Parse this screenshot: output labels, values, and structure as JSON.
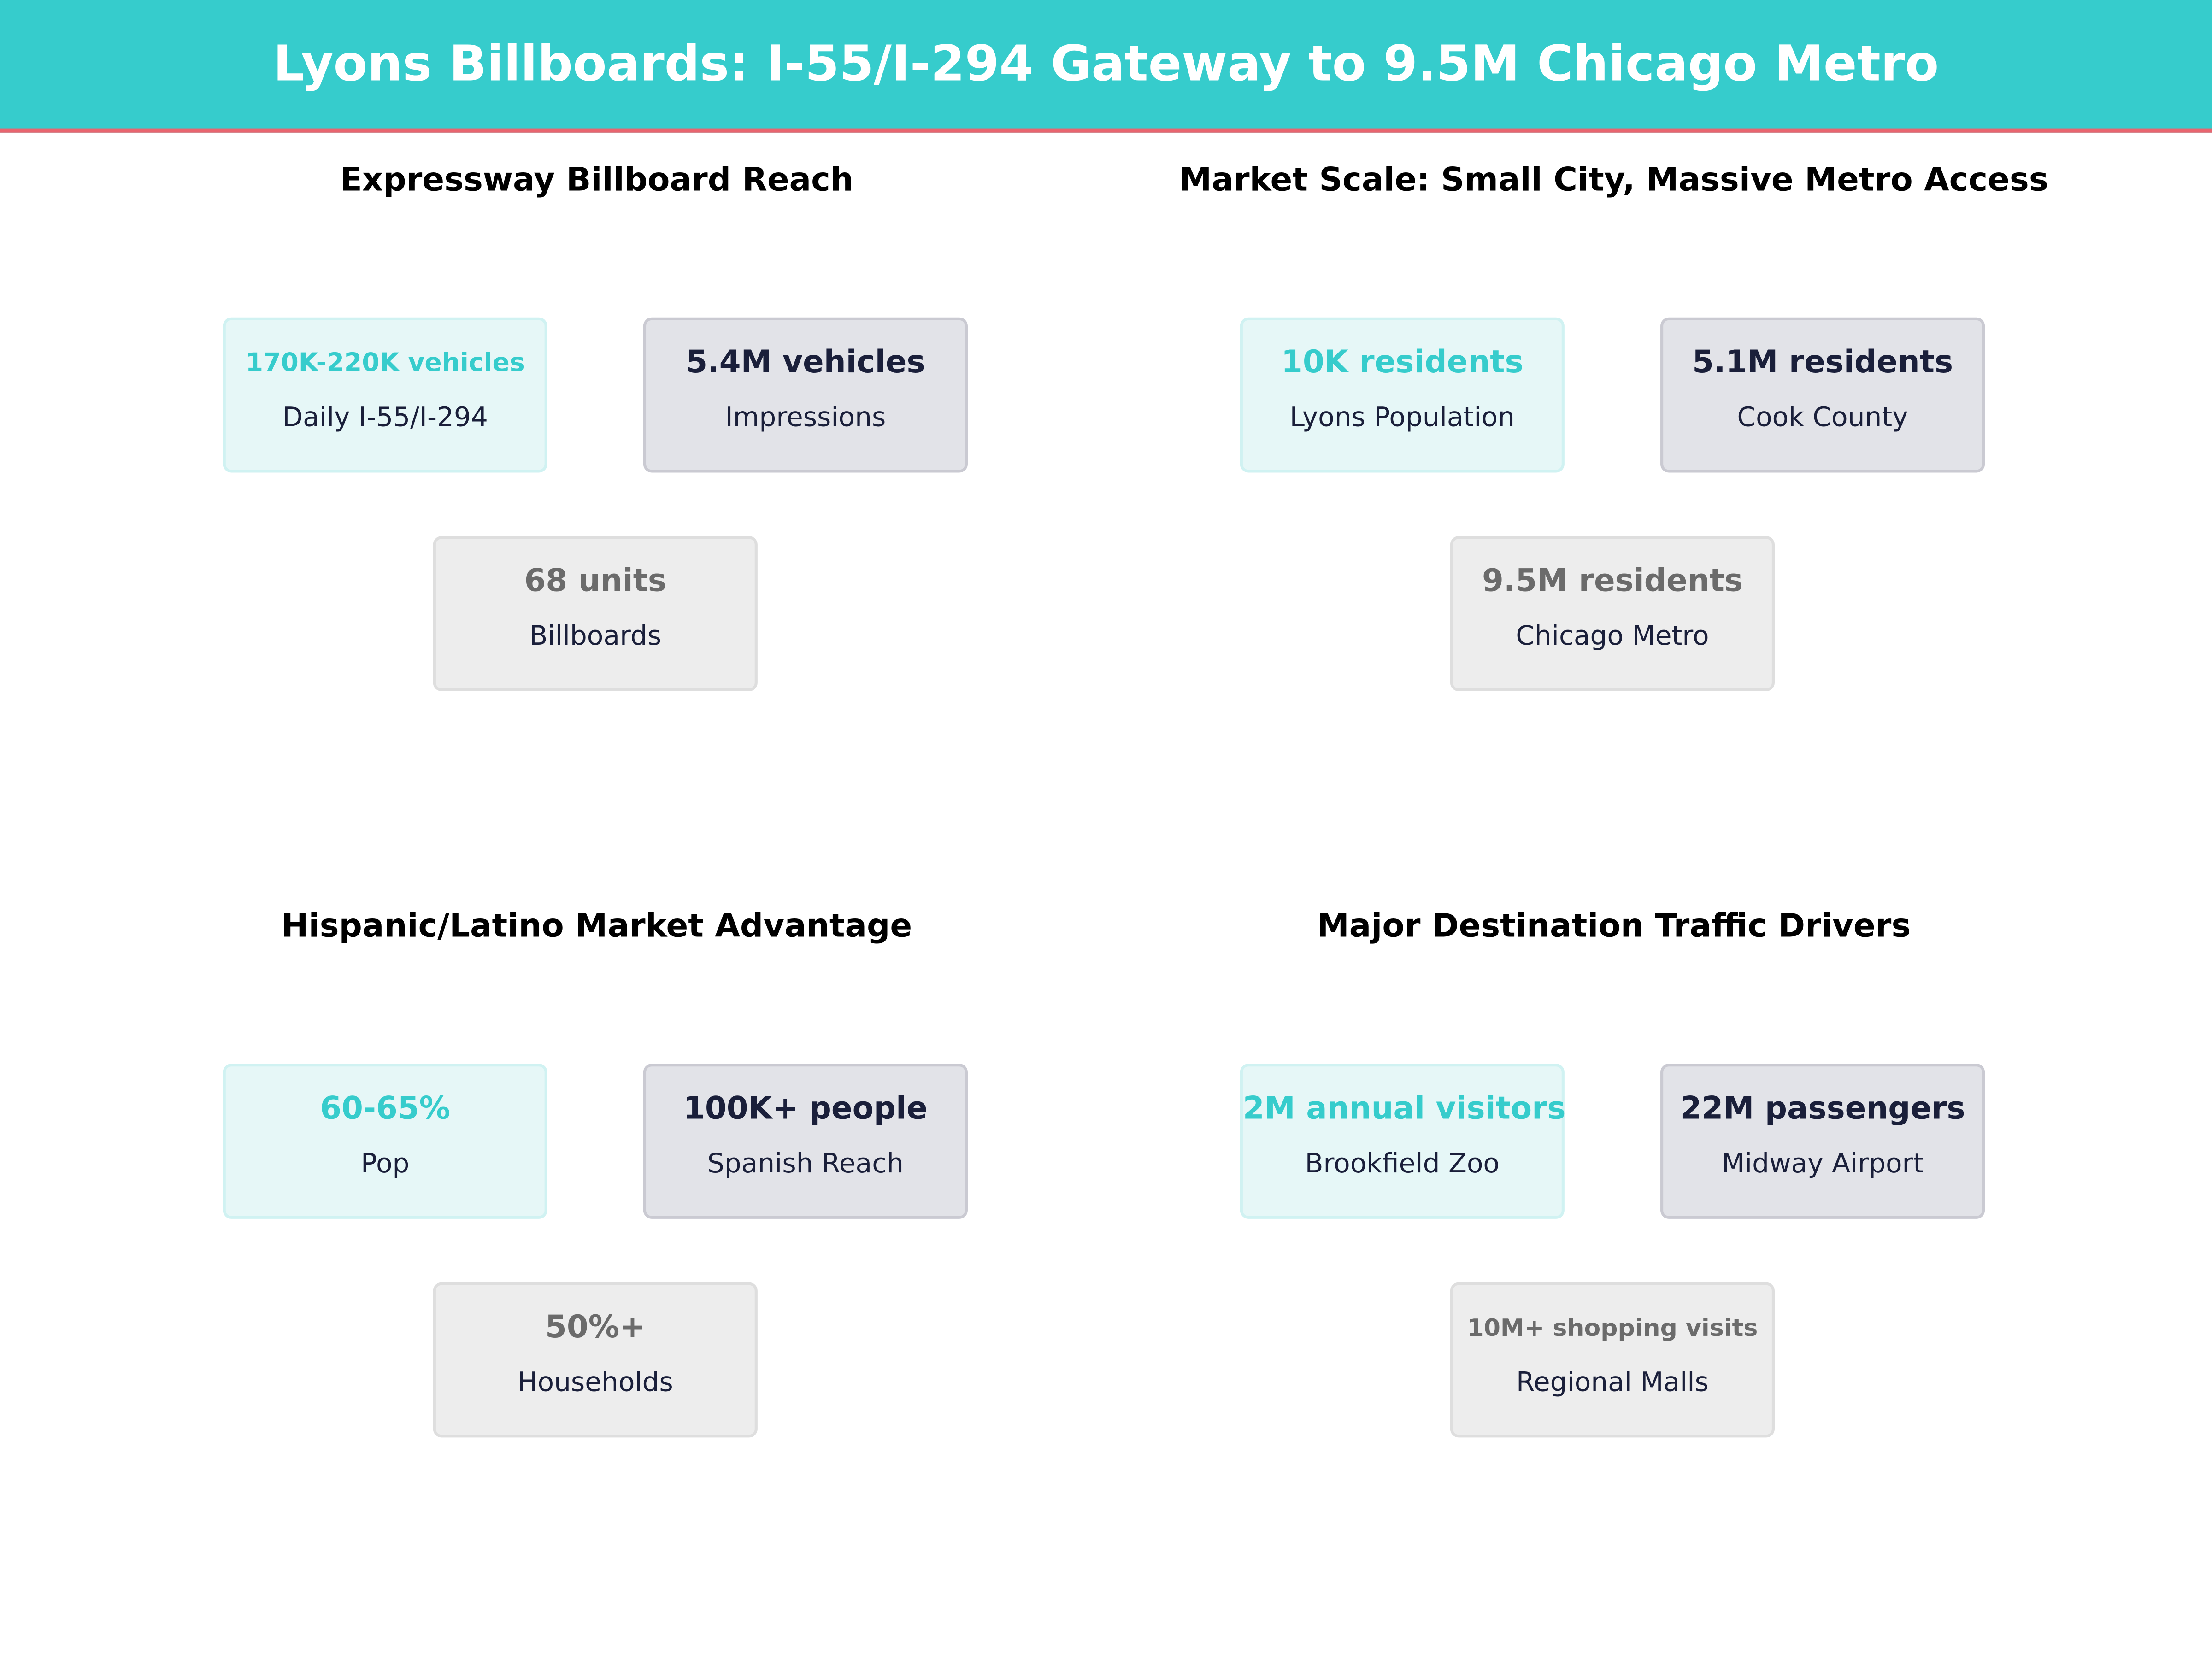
{
  "title": "Lyons Billboards: I-55/I-294 Gateway to 9.5M Chicago Metro",
  "colors": {
    "header": "#36CCCC",
    "accent_line": "#E8656F",
    "primary": "#36CCCC",
    "dark": "#1A1F3A",
    "muted": "#6B6B6B"
  },
  "panels": [
    {
      "title": "Expressway Billboard Reach",
      "cards": [
        {
          "value": "170K-220K vehicles",
          "label": "Daily I-55/I-294"
        },
        {
          "value": "5.4M vehicles",
          "label": "Impressions"
        },
        {
          "value": "68 units",
          "label": "Billboards"
        }
      ]
    },
    {
      "title": "Market Scale: Small City, Massive Metro Access",
      "cards": [
        {
          "value": "10K residents",
          "label": "Lyons Population"
        },
        {
          "value": "5.1M residents",
          "label": "Cook County"
        },
        {
          "value": "9.5M residents",
          "label": "Chicago Metro"
        }
      ]
    },
    {
      "title": "Hispanic/Latino Market Advantage",
      "cards": [
        {
          "value": "60-65%",
          "label": "Pop"
        },
        {
          "value": "100K+ people",
          "label": "Spanish Reach"
        },
        {
          "value": "50%+",
          "label": "Households"
        }
      ]
    },
    {
      "title": "Major Destination Traffic Drivers",
      "cards": [
        {
          "value": "2M annual visitors",
          "label": "Brookfield Zoo"
        },
        {
          "value": "22M passengers",
          "label": "Midway Airport"
        },
        {
          "value": "10M+ shopping visits",
          "label": "Regional Malls"
        }
      ]
    }
  ]
}
